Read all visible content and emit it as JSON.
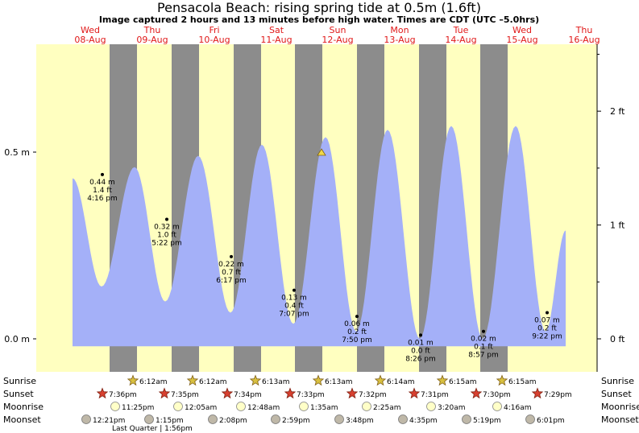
{
  "title": "Pensacola Beach: rising  spring tide at 0.5m (1.6ft)",
  "subtitle": "Image captured 2 hours and 13 minutes before high water. Times are CDT (UTC –5.0hrs)",
  "colors": {
    "day": "#ffffc0",
    "night": "#8c8c8c",
    "tide": "#a4b0f8",
    "day_label": "#e01818",
    "star_fill": "#d8c040",
    "sunset_star": "#d84030",
    "moon_fill": "#ffffc8",
    "moonset_fill": "#bfb8a8"
  },
  "days": [
    {
      "dow": "Wed",
      "date": "08-Aug"
    },
    {
      "dow": "Thu",
      "date": "09-Aug"
    },
    {
      "dow": "Fri",
      "date": "10-Aug"
    },
    {
      "dow": "Sat",
      "date": "11-Aug"
    },
    {
      "dow": "Sun",
      "date": "12-Aug"
    },
    {
      "dow": "Mon",
      "date": "13-Aug"
    },
    {
      "dow": "Tue",
      "date": "14-Aug"
    },
    {
      "dow": "Wed",
      "date": "15-Aug"
    },
    {
      "dow": "Thu",
      "date": "16-Aug"
    }
  ],
  "axes": {
    "left": {
      "unit": "m",
      "ticks": [
        {
          "value": 0.0,
          "label": "0.0 m"
        },
        {
          "value": 0.5,
          "label": "0.5 m"
        }
      ]
    },
    "right": {
      "unit": "ft",
      "ticks": [
        {
          "value": 0,
          "label": "0 ft"
        },
        {
          "value": 1,
          "label": "1 ft"
        },
        {
          "value": 2,
          "label": "2 ft"
        }
      ]
    }
  },
  "chart_data": {
    "type": "area",
    "x_unit": "date/time (CDT)",
    "y_unit": "m",
    "ylim": [
      -0.08,
      0.78
    ],
    "low_tides": [
      {
        "date": "08-Aug",
        "time": "4:16 pm",
        "height_m": "0.44 m",
        "height_ft": "1.4 ft",
        "value": 0.44
      },
      {
        "date": "09-Aug",
        "time": "5:22 pm",
        "height_m": "0.32 m",
        "height_ft": "1.0 ft",
        "value": 0.32
      },
      {
        "date": "10-Aug",
        "time": "6:17 pm",
        "height_m": "0.22 m",
        "height_ft": "0.7 ft",
        "value": 0.22
      },
      {
        "date": "11-Aug",
        "time": "7:07 pm",
        "height_m": "0.13 m",
        "height_ft": "0.4 ft",
        "value": 0.13
      },
      {
        "date": "12-Aug",
        "time": "7:50 pm",
        "height_m": "0.06 m",
        "height_ft": "0.2 ft",
        "value": 0.06
      },
      {
        "date": "13-Aug",
        "time": "8:26 pm",
        "height_m": "0.01 m",
        "height_ft": "0.0 ft",
        "value": 0.01
      },
      {
        "date": "14-Aug",
        "time": "8:57 pm",
        "height_m": "0.02 m",
        "height_ft": "0.1 ft",
        "value": 0.02
      },
      {
        "date": "15-Aug",
        "time": "9:22 pm",
        "height_m": "0.07 m",
        "height_ft": "0.2 ft",
        "value": 0.07
      }
    ],
    "high_tides": [
      {
        "date": "08-Aug",
        "value": 0.42
      },
      {
        "date": "09-Aug",
        "value": 0.46
      },
      {
        "date": "10-Aug",
        "value": 0.49
      },
      {
        "date": "11-Aug",
        "value": 0.52
      },
      {
        "date": "12-Aug",
        "value": 0.54
      },
      {
        "date": "13-Aug",
        "value": 0.56
      },
      {
        "date": "14-Aug",
        "value": 0.57
      },
      {
        "date": "15-Aug",
        "value": 0.57
      }
    ],
    "troughs": [
      {
        "date": "08-Aug",
        "value": 0.14
      },
      {
        "date": "09-Aug",
        "value": 0.1
      },
      {
        "date": "10-Aug",
        "value": 0.07
      },
      {
        "date": "11-Aug",
        "value": 0.04
      },
      {
        "date": "12-Aug",
        "value": 0.02
      },
      {
        "date": "13-Aug",
        "value": 0.0
      },
      {
        "date": "14-Aug",
        "value": 0.0
      },
      {
        "date": "15-Aug",
        "value": 0.02
      }
    ],
    "current": {
      "value": 0.5
    }
  },
  "rows": {
    "sunrise": {
      "label": "Sunrise",
      "times": [
        "6:12am",
        "6:12am",
        "6:13am",
        "6:13am",
        "6:14am",
        "6:15am",
        "6:15am"
      ]
    },
    "sunset": {
      "label": "Sunset",
      "times": [
        "7:36pm",
        "7:35pm",
        "7:34pm",
        "7:33pm",
        "7:32pm",
        "7:31pm",
        "7:30pm",
        "7:29pm"
      ]
    },
    "moonrise": {
      "label": "Moonrise",
      "times": [
        "11:25pm",
        "12:05am",
        "12:48am",
        "1:35am",
        "2:25am",
        "3:20am",
        "4:16am"
      ]
    },
    "moonset": {
      "label": "Moonset",
      "times": [
        "12:21pm",
        "1:15pm",
        "2:08pm",
        "2:59pm",
        "3:48pm",
        "4:35pm",
        "5:19pm",
        "6:01pm"
      ]
    },
    "phase": "Last Quarter | 1:56pm"
  }
}
